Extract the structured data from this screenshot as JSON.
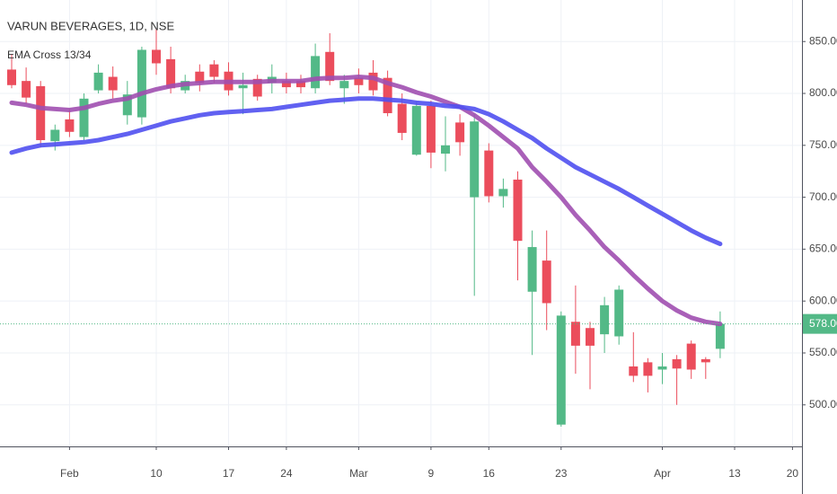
{
  "chart_data": {
    "type": "candlestick",
    "title": "VARUN BEVERAGES, 1D, NSE",
    "categories": [
      null,
      null,
      null,
      null,
      "Feb",
      null,
      null,
      null,
      null,
      null,
      "10",
      null,
      null,
      null,
      null,
      "17",
      null,
      null,
      null,
      "24",
      null,
      null,
      null,
      null,
      "Mar",
      null,
      null,
      null,
      null,
      "9",
      null,
      null,
      null,
      "16",
      null,
      null,
      null,
      null,
      "23",
      null,
      null,
      null,
      null,
      null,
      null,
      "Apr",
      null,
      null,
      null,
      null,
      "13",
      null,
      null,
      null,
      "20"
    ],
    "open": [
      823,
      812,
      807,
      754,
      775,
      758,
      803,
      816,
      779,
      777,
      842,
      833,
      803,
      821,
      828,
      821,
      805,
      814,
      810,
      812,
      812,
      805,
      840,
      805,
      815,
      820,
      815,
      790,
      741,
      788,
      742,
      772,
      700,
      745,
      701,
      717,
      609,
      639,
      481,
      580,
      574,
      568,
      566,
      537,
      541,
      534,
      544,
      559,
      544,
      554,
      null,
      null,
      null,
      null,
      null
    ],
    "high": [
      838,
      825,
      812,
      770,
      785,
      800,
      828,
      826,
      812,
      845,
      862,
      845,
      818,
      828,
      832,
      830,
      820,
      818,
      828,
      820,
      818,
      848,
      858,
      818,
      824,
      832,
      822,
      800,
      792,
      793,
      778,
      780,
      780,
      752,
      718,
      725,
      668,
      668,
      590,
      615,
      580,
      604,
      615,
      570,
      545,
      550,
      548,
      562,
      546,
      590,
      null,
      null,
      null,
      null,
      null
    ],
    "low": [
      805,
      790,
      748,
      745,
      758,
      755,
      800,
      795,
      770,
      770,
      818,
      800,
      800,
      802,
      810,
      798,
      780,
      793,
      800,
      800,
      800,
      800,
      808,
      790,
      800,
      798,
      778,
      755,
      740,
      728,
      725,
      740,
      605,
      695,
      690,
      620,
      548,
      572,
      479,
      530,
      515,
      550,
      558,
      522,
      512,
      520,
      500,
      525,
      525,
      545,
      null,
      null,
      null,
      null,
      null
    ],
    "close": [
      808,
      796,
      755,
      765,
      763,
      795,
      820,
      803,
      799,
      842,
      829,
      805,
      812,
      810,
      816,
      803,
      808,
      797,
      816,
      806,
      806,
      836,
      812,
      812,
      808,
      803,
      781,
      762,
      788,
      743,
      750,
      753,
      773,
      701,
      708,
      658,
      652,
      598,
      586,
      557,
      557,
      596,
      611,
      528,
      528,
      537,
      535,
      534,
      541,
      578,
      null,
      null,
      null,
      null,
      null
    ],
    "up_color": "#53b987",
    "down_color": "#eb4d5c",
    "indicator": {
      "name": "EMA Cross 13/34",
      "lines": [
        {
          "color": "#a04fb0",
          "values": [
            791,
            789,
            786,
            785,
            784,
            786,
            790,
            793,
            795,
            800,
            804,
            807,
            809,
            810,
            811,
            811,
            811,
            811,
            812,
            812,
            812,
            814,
            815,
            815,
            816,
            815,
            810,
            806,
            801,
            797,
            792,
            787,
            779,
            769,
            758,
            747,
            729,
            715,
            700,
            683,
            668,
            652,
            639,
            625,
            612,
            600,
            591,
            584,
            580,
            578,
            null,
            null,
            null,
            null,
            null
          ]
        },
        {
          "color": "#5050f0",
          "values": [
            743,
            747,
            750,
            751,
            752,
            753,
            755,
            758,
            761,
            765,
            769,
            773,
            776,
            779,
            781,
            782,
            783,
            784,
            785,
            787,
            789,
            791,
            793,
            794,
            795,
            795,
            794,
            793,
            791,
            790,
            788,
            787,
            785,
            780,
            773,
            765,
            757,
            747,
            738,
            729,
            722,
            715,
            708,
            700,
            692,
            684,
            676,
            668,
            661,
            655,
            null,
            null,
            null,
            null,
            null
          ]
        }
      ]
    },
    "last_price": {
      "value": 578,
      "label": "578.00"
    },
    "ylim": [
      460,
      890
    ],
    "yticks": [
      {
        "value": 500,
        "label": "500.00"
      },
      {
        "value": 550,
        "label": "550.00"
      },
      {
        "value": 600,
        "label": "600.00"
      },
      {
        "value": 650,
        "label": "650.00"
      },
      {
        "value": 700,
        "label": "700.00"
      },
      {
        "value": 750,
        "label": "750.00"
      },
      {
        "value": 800,
        "label": "800.00"
      },
      {
        "value": 850,
        "label": "850.00"
      }
    ],
    "grid": true
  }
}
